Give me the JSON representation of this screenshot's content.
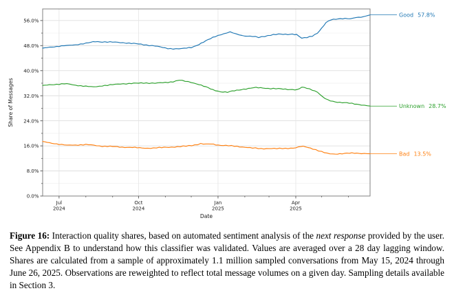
{
  "figure": {
    "caption": {
      "label": "Figure 16:",
      "part1": " Interaction quality shares, based on automated sentiment analysis of the ",
      "italic": "next response",
      "part2": " provided by the user. See Appendix B to understand how this classifier was validated. Values are averaged over a 28 day lagging window. Shares are calculated from a sample of approximately 1.1 million sampled conversations from May 15, 2024 through June 26, 2025. Observations are reweighted to reflect total message volumes on a given day. Sampling details available in Section 3."
    }
  },
  "chart_data": {
    "type": "line",
    "title": "",
    "xlabel": "Date",
    "ylabel": "Share of Messages",
    "x_range": [
      "2024-06-12",
      "2025-06-26"
    ],
    "ylim": [
      0,
      59.7
    ],
    "grid": true,
    "legend_position": "right-edge-annotations",
    "axis_colors": {
      "spine": "#808080",
      "tick": "#555555",
      "label": "#1a1a1a",
      "grid_major": "#d9d9d9",
      "grid_minor": "#efefef",
      "grid_vertical": "#e5e5e5"
    },
    "yticks_major": [
      0,
      8,
      16,
      24,
      32,
      40,
      48,
      56
    ],
    "ytick_labels": [
      "0.0%",
      "8.0%",
      "16.0%",
      "24.0%",
      "32.0%",
      "40.0%",
      "48.0%",
      "56.0%"
    ],
    "yticks_minor": [
      4,
      12,
      20,
      28,
      36,
      44,
      52
    ],
    "xticks_major": [
      {
        "date": "2024-07-01",
        "line1": "Jul",
        "line2": "2024"
      },
      {
        "date": "2024-10-01",
        "line1": "Oct",
        "line2": "2024"
      },
      {
        "date": "2025-01-01",
        "line1": "Jan",
        "line2": "2025"
      },
      {
        "date": "2025-04-01",
        "line1": "Apr",
        "line2": "2025"
      }
    ],
    "xticks_minor": [
      "2024-08-01",
      "2024-09-01",
      "2024-11-01",
      "2024-12-01",
      "2025-02-01",
      "2025-03-01",
      "2025-05-01",
      "2025-06-01"
    ],
    "series": [
      {
        "name": "Good",
        "color": "#1f77b4",
        "end_label": "Good",
        "end_value_label": "57.8%",
        "points": [
          [
            "2024-06-12",
            47.2
          ],
          [
            "2024-06-20",
            47.5
          ],
          [
            "2024-07-01",
            47.8
          ],
          [
            "2024-07-10",
            48.0
          ],
          [
            "2024-07-20",
            48.3
          ],
          [
            "2024-08-01",
            48.7
          ],
          [
            "2024-08-12",
            49.3
          ],
          [
            "2024-08-20",
            49.2
          ],
          [
            "2024-09-01",
            49.1
          ],
          [
            "2024-09-10",
            49.0
          ],
          [
            "2024-09-20",
            48.8
          ],
          [
            "2024-10-01",
            48.5
          ],
          [
            "2024-10-10",
            48.2
          ],
          [
            "2024-10-20",
            47.9
          ],
          [
            "2024-11-01",
            47.2
          ],
          [
            "2024-11-10",
            47.0
          ],
          [
            "2024-11-20",
            47.0
          ],
          [
            "2024-12-01",
            47.4
          ],
          [
            "2024-12-10",
            48.4
          ],
          [
            "2024-12-18",
            49.5
          ],
          [
            "2024-12-26",
            50.6
          ],
          [
            "2025-01-01",
            51.3
          ],
          [
            "2025-01-08",
            51.8
          ],
          [
            "2025-01-15",
            52.3
          ],
          [
            "2025-01-22",
            51.7
          ],
          [
            "2025-02-01",
            51.1
          ],
          [
            "2025-02-10",
            50.9
          ],
          [
            "2025-02-17",
            50.6
          ],
          [
            "2025-02-24",
            51.0
          ],
          [
            "2025-03-03",
            51.4
          ],
          [
            "2025-03-12",
            51.6
          ],
          [
            "2025-03-20",
            51.6
          ],
          [
            "2025-03-28",
            51.7
          ],
          [
            "2025-04-02",
            51.5
          ],
          [
            "2025-04-08",
            50.3
          ],
          [
            "2025-04-14",
            50.6
          ],
          [
            "2025-04-20",
            51.1
          ],
          [
            "2025-04-26",
            52.0
          ],
          [
            "2025-05-01",
            53.5
          ],
          [
            "2025-05-06",
            55.3
          ],
          [
            "2025-05-12",
            56.3
          ],
          [
            "2025-05-20",
            56.6
          ],
          [
            "2025-05-28",
            56.6
          ],
          [
            "2025-06-03",
            56.5
          ],
          [
            "2025-06-10",
            57.0
          ],
          [
            "2025-06-18",
            57.2
          ],
          [
            "2025-06-26",
            57.8
          ]
        ]
      },
      {
        "name": "Unknown",
        "color": "#2ca02c",
        "end_label": "Unknown",
        "end_value_label": "28.7%",
        "points": [
          [
            "2024-06-12",
            35.3
          ],
          [
            "2024-06-20",
            35.5
          ],
          [
            "2024-07-01",
            35.7
          ],
          [
            "2024-07-10",
            35.8
          ],
          [
            "2024-07-20",
            35.4
          ],
          [
            "2024-08-01",
            35.0
          ],
          [
            "2024-08-10",
            34.8
          ],
          [
            "2024-08-20",
            35.2
          ],
          [
            "2024-09-01",
            35.5
          ],
          [
            "2024-09-10",
            35.8
          ],
          [
            "2024-09-20",
            35.9
          ],
          [
            "2024-10-01",
            36.0
          ],
          [
            "2024-10-10",
            36.1
          ],
          [
            "2024-10-20",
            36.0
          ],
          [
            "2024-11-01",
            36.2
          ],
          [
            "2024-11-10",
            36.5
          ],
          [
            "2024-11-17",
            37.0
          ],
          [
            "2024-11-24",
            36.6
          ],
          [
            "2024-12-01",
            36.3
          ],
          [
            "2024-12-10",
            35.6
          ],
          [
            "2024-12-18",
            34.8
          ],
          [
            "2024-12-26",
            33.9
          ],
          [
            "2025-01-04",
            33.3
          ],
          [
            "2025-01-12",
            33.1
          ],
          [
            "2025-01-20",
            33.6
          ],
          [
            "2025-01-28",
            34.0
          ],
          [
            "2025-02-05",
            34.3
          ],
          [
            "2025-02-14",
            34.6
          ],
          [
            "2025-02-22",
            34.5
          ],
          [
            "2025-03-03",
            34.3
          ],
          [
            "2025-03-12",
            34.2
          ],
          [
            "2025-03-20",
            34.1
          ],
          [
            "2025-03-28",
            34.0
          ],
          [
            "2025-04-03",
            33.9
          ],
          [
            "2025-04-08",
            34.7
          ],
          [
            "2025-04-14",
            34.4
          ],
          [
            "2025-04-20",
            33.9
          ],
          [
            "2025-04-26",
            33.2
          ],
          [
            "2025-05-02",
            31.6
          ],
          [
            "2025-05-08",
            30.6
          ],
          [
            "2025-05-14",
            30.2
          ],
          [
            "2025-05-22",
            29.9
          ],
          [
            "2025-05-30",
            29.7
          ],
          [
            "2025-06-08",
            29.4
          ],
          [
            "2025-06-16",
            29.1
          ],
          [
            "2025-06-26",
            28.7
          ]
        ]
      },
      {
        "name": "Bad",
        "color": "#ff7f0e",
        "end_label": "Bad",
        "end_value_label": "13.5%",
        "points": [
          [
            "2024-06-12",
            17.4
          ],
          [
            "2024-06-20",
            17.0
          ],
          [
            "2024-07-01",
            16.5
          ],
          [
            "2024-07-10",
            16.2
          ],
          [
            "2024-07-20",
            16.3
          ],
          [
            "2024-08-01",
            16.4
          ],
          [
            "2024-08-10",
            16.2
          ],
          [
            "2024-08-20",
            15.9
          ],
          [
            "2024-09-01",
            15.8
          ],
          [
            "2024-09-12",
            15.6
          ],
          [
            "2024-09-24",
            15.5
          ],
          [
            "2024-10-05",
            15.3
          ],
          [
            "2024-10-15",
            15.3
          ],
          [
            "2024-10-25",
            15.4
          ],
          [
            "2024-11-05",
            15.6
          ],
          [
            "2024-11-15",
            15.7
          ],
          [
            "2024-11-25",
            15.9
          ],
          [
            "2024-12-05",
            16.3
          ],
          [
            "2024-12-12",
            16.7
          ],
          [
            "2024-12-18",
            16.5
          ],
          [
            "2024-12-24",
            16.6
          ],
          [
            "2025-01-01",
            16.3
          ],
          [
            "2025-01-10",
            16.1
          ],
          [
            "2025-01-20",
            15.9
          ],
          [
            "2025-02-01",
            15.6
          ],
          [
            "2025-02-10",
            15.3
          ],
          [
            "2025-02-20",
            15.1
          ],
          [
            "2025-03-01",
            15.2
          ],
          [
            "2025-03-10",
            15.1
          ],
          [
            "2025-03-20",
            15.2
          ],
          [
            "2025-04-01",
            15.4
          ],
          [
            "2025-04-07",
            15.8
          ],
          [
            "2025-04-12",
            15.7
          ],
          [
            "2025-04-18",
            15.3
          ],
          [
            "2025-04-24",
            14.8
          ],
          [
            "2025-05-01",
            14.1
          ],
          [
            "2025-05-07",
            13.6
          ],
          [
            "2025-05-14",
            13.4
          ],
          [
            "2025-05-22",
            13.5
          ],
          [
            "2025-05-30",
            13.6
          ],
          [
            "2025-06-08",
            13.7
          ],
          [
            "2025-06-16",
            13.6
          ],
          [
            "2025-06-26",
            13.5
          ]
        ]
      }
    ]
  }
}
